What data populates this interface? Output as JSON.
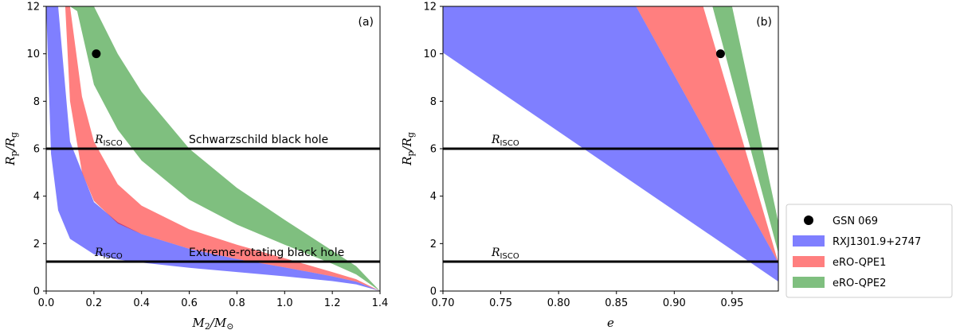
{
  "chart_data": [
    {
      "type": "area",
      "panel_label": "(a)",
      "xlabel_main": "M",
      "xlabel_sub": "2",
      "xlabel_rest": "/M",
      "xlabel_sun": "⊙",
      "ylabel_main": "R",
      "ylabel_sub1": "p",
      "ylabel_mid": "/R",
      "ylabel_sub2": "g",
      "xlim": [
        0.0,
        1.4
      ],
      "ylim": [
        0,
        12
      ],
      "xticks": [
        "0.0",
        "0.2",
        "0.4",
        "0.6",
        "0.8",
        "1.0",
        "1.2",
        "1.4"
      ],
      "yticks": [
        "0",
        "2",
        "4",
        "6",
        "8",
        "10",
        "12"
      ],
      "hlines": [
        {
          "y": 6.0,
          "label": "Schwarzschild black hole",
          "r_main": "R",
          "r_sub": "ISCO"
        },
        {
          "y": 1.24,
          "label": "Extreme-rotating black hole",
          "r_main": "R",
          "r_sub": "ISCO"
        }
      ],
      "point": {
        "name": "GSN 069",
        "x": 0.21,
        "y": 10.0
      },
      "series": [
        {
          "name": "RXJ1301.9+2747",
          "color": "#0000ff",
          "alpha": 0.5,
          "x": [
            0.0,
            0.02,
            0.05,
            0.1,
            0.2,
            0.3,
            0.4,
            0.6,
            0.8,
            1.0,
            1.2,
            1.3,
            1.4
          ],
          "lower": [
            12.0,
            5.8,
            3.4,
            2.2,
            1.55,
            1.33,
            1.2,
            0.98,
            0.8,
            0.62,
            0.42,
            0.28,
            0.0
          ],
          "upper": [
            12.0,
            12.0,
            12.0,
            6.3,
            3.75,
            2.9,
            2.4,
            1.78,
            1.35,
            1.0,
            0.62,
            0.4,
            0.0
          ]
        },
        {
          "name": "eRO-QPE1",
          "color": "#ff0000",
          "alpha": 0.5,
          "x": [
            0.08,
            0.1,
            0.15,
            0.2,
            0.3,
            0.4,
            0.6,
            0.8,
            1.0,
            1.2,
            1.3,
            1.4
          ],
          "lower": [
            12.0,
            8.0,
            5.0,
            3.8,
            2.85,
            2.4,
            1.78,
            1.35,
            1.0,
            0.62,
            0.4,
            0.0
          ],
          "upper": [
            12.0,
            12.0,
            8.2,
            6.3,
            4.5,
            3.6,
            2.6,
            1.95,
            1.38,
            0.8,
            0.5,
            0.0
          ]
        },
        {
          "name": "eRO-QPE2",
          "color": "#008000",
          "alpha": 0.5,
          "x": [
            0.1,
            0.13,
            0.2,
            0.3,
            0.4,
            0.6,
            0.8,
            1.0,
            1.2,
            1.3,
            1.4
          ],
          "lower": [
            12.0,
            11.8,
            8.7,
            6.8,
            5.5,
            3.85,
            2.8,
            1.95,
            1.15,
            0.7,
            0.0
          ],
          "upper": [
            12.0,
            12.0,
            12.0,
            10.0,
            8.4,
            6.0,
            4.35,
            3.0,
            1.7,
            1.05,
            0.0
          ]
        }
      ]
    },
    {
      "type": "area",
      "panel_label": "(b)",
      "xlabel_main": "e",
      "ylabel_main": "R",
      "ylabel_sub1": "p",
      "ylabel_mid": "/R",
      "ylabel_sub2": "g",
      "xlim": [
        0.7,
        0.99
      ],
      "ylim": [
        0,
        12
      ],
      "xticks": [
        "0.70",
        "0.75",
        "0.80",
        "0.85",
        "0.90",
        "0.95"
      ],
      "yticks": [
        "0",
        "2",
        "4",
        "6",
        "8",
        "10",
        "12"
      ],
      "hlines": [
        {
          "y": 6.0,
          "label": "",
          "r_main": "R",
          "r_sub": "ISCO"
        },
        {
          "y": 1.24,
          "label": "",
          "r_main": "R",
          "r_sub": "ISCO"
        }
      ],
      "point": {
        "name": "GSN 069",
        "x": 0.94,
        "y": 10.0
      },
      "series": [
        {
          "name": "RXJ1301.9+2747",
          "color": "#0000ff",
          "alpha": 0.5,
          "polygon": [
            [
              0.7,
              10.05
            ],
            [
              0.7,
              12.0
            ],
            [
              0.867,
              12.0
            ],
            [
              0.99,
              1.2
            ],
            [
              0.99,
              0.4
            ]
          ]
        },
        {
          "name": "eRO-QPE1",
          "color": "#ff0000",
          "alpha": 0.5,
          "polygon": [
            [
              0.867,
              12.0
            ],
            [
              0.99,
              1.2
            ],
            [
              0.925,
              12.0
            ]
          ]
        },
        {
          "name": "eRO-QPE2",
          "color": "#008000",
          "alpha": 0.5,
          "polygon": [
            [
              0.933,
              12.0
            ],
            [
              0.99,
              1.6
            ],
            [
              0.99,
              2.9
            ],
            [
              0.95,
              12.0
            ]
          ]
        }
      ]
    }
  ],
  "legend": {
    "items": [
      {
        "name": "GSN 069",
        "kind": "point",
        "color": "#000000"
      },
      {
        "name": "RXJ1301.9+2747",
        "kind": "patch",
        "color": "#0000ff"
      },
      {
        "name": "eRO-QPE1",
        "kind": "patch",
        "color": "#ff0000"
      },
      {
        "name": "eRO-QPE2",
        "kind": "patch",
        "color": "#008000"
      }
    ]
  }
}
